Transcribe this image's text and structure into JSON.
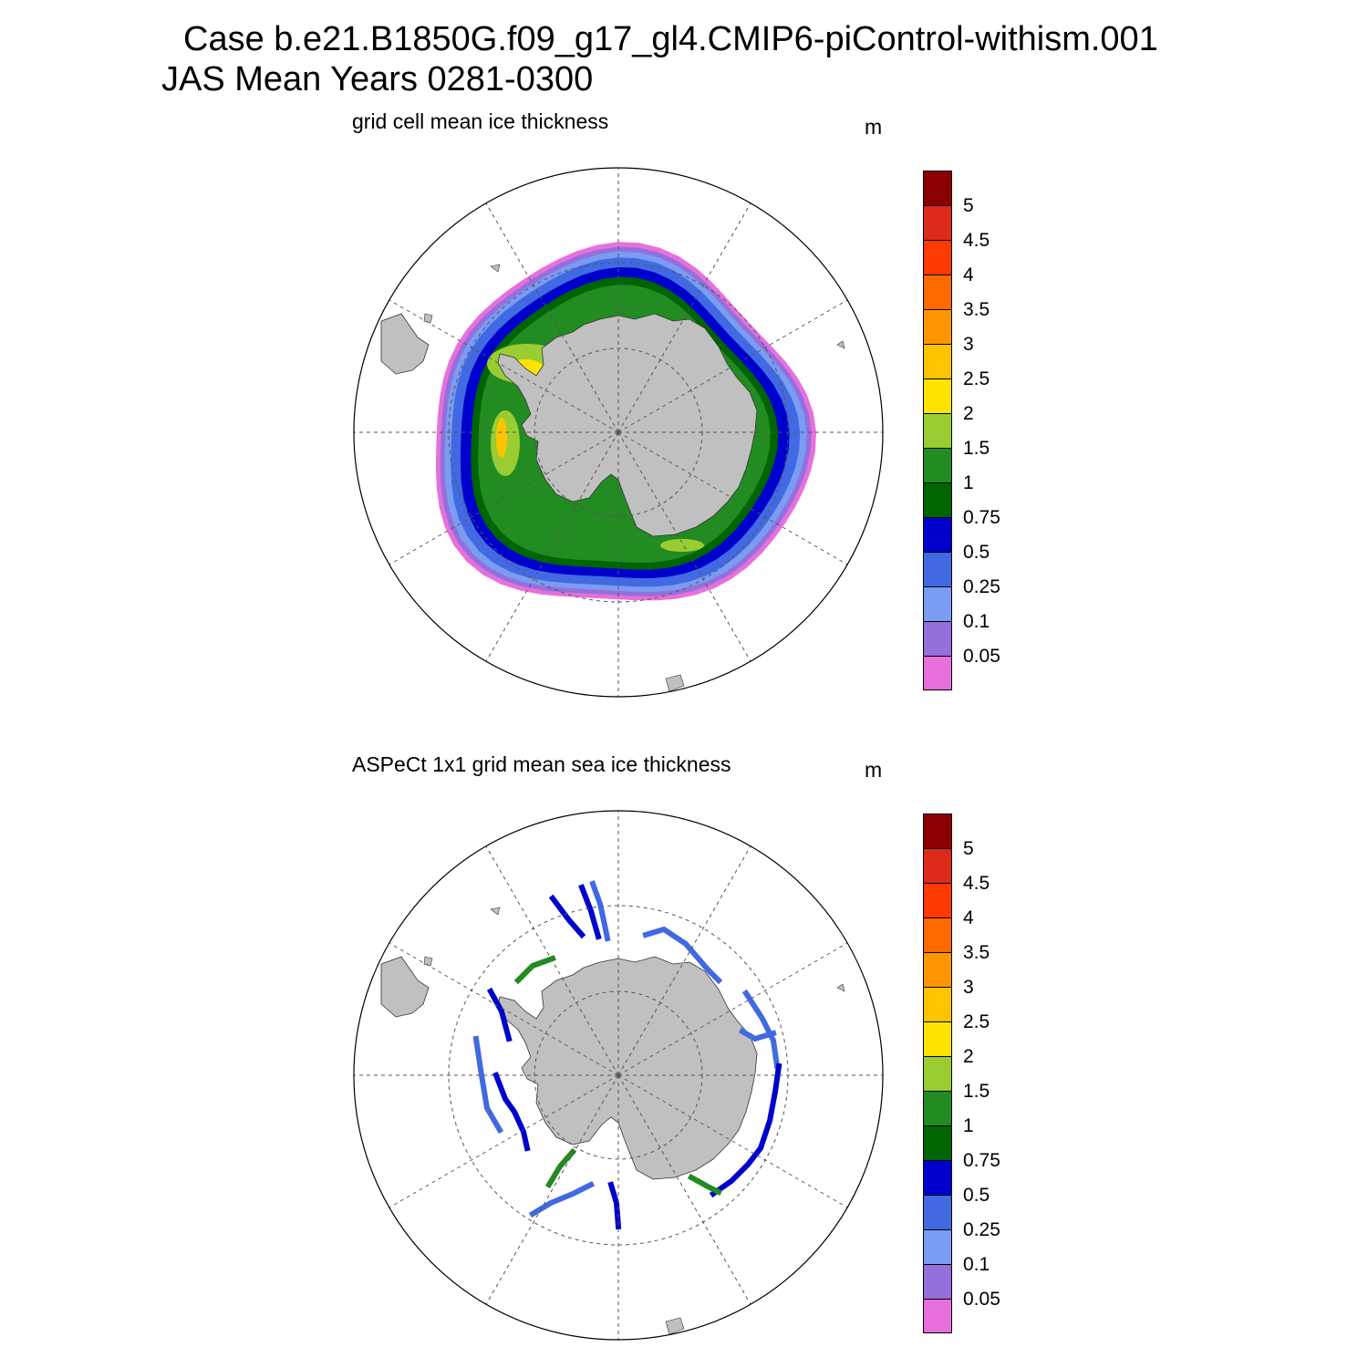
{
  "figure": {
    "title_line1": "Case b.e21.B1850G.f09_g17_gl4.CMIP6-piControl-withism.001",
    "title_line2": "JAS Mean   Years 0281-0300"
  },
  "panels": [
    {
      "title": "grid cell mean ice thickness",
      "units": "m"
    },
    {
      "title": "ASPeCt 1x1 grid mean sea ice thickness",
      "units": "m"
    }
  ],
  "colorbar": {
    "levels": [
      "5",
      "4.5",
      "4",
      "3.5",
      "3",
      "2.5",
      "2",
      "1.5",
      "1",
      "0.75",
      "0.5",
      "0.25",
      "0.1",
      "0.05"
    ],
    "colors": [
      "#8b0000",
      "#dd2a1b",
      "#ff3a00",
      "#ff6a00",
      "#ff9600",
      "#ffc400",
      "#ffe300",
      "#9acd32",
      "#228b22",
      "#006400",
      "#0000cd",
      "#4169e1",
      "#7a9cf2",
      "#9370db",
      "#e770dc"
    ]
  },
  "chart_data": {
    "type": "heatmap",
    "projection": "south polar stereographic",
    "colorbar_levels": [
      0.05,
      0.1,
      0.25,
      0.5,
      0.75,
      1,
      1.5,
      2,
      2.5,
      3,
      3.5,
      4,
      4.5,
      5
    ],
    "units": "m",
    "panels": [
      {
        "name": "grid cell mean ice thickness",
        "field": "model sea ice thickness, continuous ring around Antarctica"
      },
      {
        "name": "ASPeCt 1x1 grid mean sea ice thickness",
        "field": "ship-based observations along cruise tracks"
      }
    ]
  }
}
